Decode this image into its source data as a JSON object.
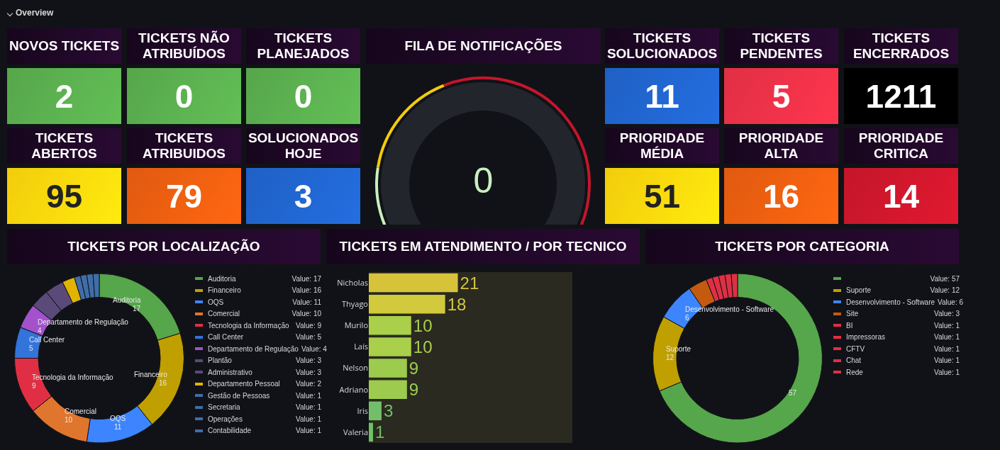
{
  "chart_data": [
    {
      "type": "other",
      "annotations": [
        "Overview"
      ],
      "categories": [
        "NOVOS TICKETS",
        "TICKETS NÃO ATRIBUÍDOS",
        "TICKETS PLANEJADOS",
        "TICKETS SOLUCIONADOS",
        "TICKETS PENDENTES",
        "TICKETS ENCERRADOS",
        "TICKETS ABERTOS",
        "TICKETS ATRIBUIDOS",
        "SOLUCIONADOS HOJE",
        "PRIORIDADE MÉDIA",
        "PRIORIDADE ALTA",
        "PRIORIDADE CRITICA"
      ],
      "values": [
        2,
        0,
        0,
        11,
        5,
        1211,
        95,
        79,
        3,
        51,
        16,
        14
      ],
      "colors": [
        "#56a64b",
        "#56a64b",
        "#56a64b",
        "#1f60c4",
        "#e02f44",
        "#000000",
        "#f2cc0c",
        "#e05a10",
        "#1f60c4",
        "#f2cc0c",
        "#e05a10",
        "#c4162a"
      ],
      "data_labels": true
    },
    {
      "type": "other",
      "title": "FILA DE NOTIFICAÇÕES",
      "values": [
        0
      ],
      "color": "#c8f0c0",
      "data_labels": true
    },
    {
      "type": "donut",
      "title": "TICKETS POR LOCALIZAÇÃO",
      "categories": [
        "Auditoria",
        "Financeiro",
        "OQS",
        "Comercial",
        "Tecnologia da Informação",
        "Call Center",
        "Departamento de Regulação",
        "Plantão",
        "Administrativo",
        "Departamento Pessoal",
        "Gestão de Pessoas",
        "Secretaria",
        "Operações",
        "Contabilidade"
      ],
      "values": [
        17,
        16,
        11,
        10,
        9,
        5,
        4,
        3,
        3,
        2,
        1,
        1,
        1,
        1
      ],
      "colors": [
        "#56a64b",
        "#c0a000",
        "#3d85ff",
        "#e0752d",
        "#e02f44",
        "#3274d9",
        "#a352cc",
        "#5a4a7a",
        "#5a4a7a",
        "#e0b400",
        "#3f6ea8",
        "#3f6ea8",
        "#3f6ea8",
        "#3f6ea8"
      ],
      "value_labels": [
        "17",
        "16",
        "11",
        "10",
        "9",
        "5",
        "4",
        null,
        null,
        null,
        null,
        null,
        null,
        null
      ],
      "annotations": [
        "Value: 17",
        "Value: 16",
        "Value: 11",
        "Value: 10",
        "Value: 9",
        "Value: 5",
        "Value: 4",
        "Value: 3",
        "Value: 3",
        "Value: 2",
        "Value: 1",
        "Value: 1",
        "Value: 1",
        "Value: 1"
      ],
      "legend": "right"
    },
    {
      "type": "bar",
      "orientation": "horizontal",
      "title": "TICKETS EM ATENDIMENTO / POR TECNICO",
      "categories": [
        "Nicholas",
        "Thyago",
        "Murilo",
        "Laís",
        "Nelson",
        "Adriano",
        "Iris",
        "Valeria"
      ],
      "values": [
        21,
        18,
        10,
        10,
        9,
        9,
        3,
        1
      ],
      "colors": [
        "#d6c33a",
        "#d2c93c",
        "#a9cf4b",
        "#a9cf4b",
        "#9ccb4e",
        "#9ccb4e",
        "#73bf69",
        "#6fbf63"
      ],
      "xlim": [
        0,
        48
      ],
      "tick_labels": "y",
      "data_labels": true
    },
    {
      "type": "donut",
      "title": "TICKETS POR CATEGORIA",
      "categories": [
        null,
        "Suporte",
        "Desenvolvimento - Software",
        "Site",
        "BI",
        "Impressoras",
        "CFTV",
        "Chat",
        "Rede"
      ],
      "values": [
        57,
        12,
        6,
        3,
        1,
        1,
        1,
        1,
        1
      ],
      "colors": [
        "#56a64b",
        "#c0a000",
        "#3d85ff",
        "#c45a10",
        "#e02f44",
        "#e02f44",
        "#e02f44",
        "#e02f44",
        "#e02f44"
      ],
      "value_labels": [
        "57",
        "12",
        "6",
        null,
        null,
        null,
        null,
        null,
        null
      ],
      "annotations": [
        "Value: 57",
        "Value: 12",
        "Value: 6",
        "Value: 3",
        "Value: 1",
        "Value: 1",
        "Value: 1",
        "Value: 1",
        "Value: 1"
      ],
      "legend": "right"
    }
  ]
}
